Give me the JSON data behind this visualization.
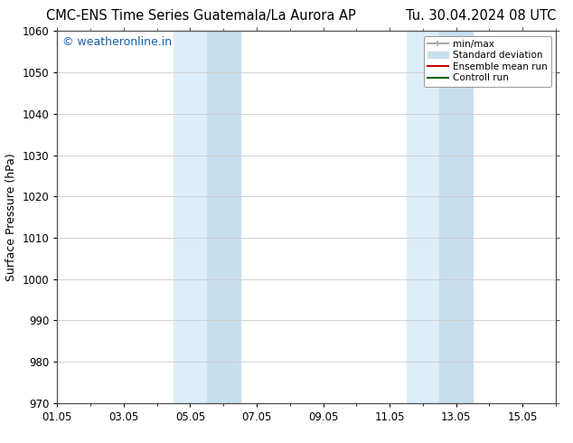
{
  "title_left": "CMC-ENS Time Series Guatemala/La Aurora AP",
  "title_right": "Tu. 30.04.2024 08 UTC",
  "ylabel": "Surface Pressure (hPa)",
  "ylim": [
    970,
    1060
  ],
  "yticks": [
    970,
    980,
    990,
    1000,
    1010,
    1020,
    1030,
    1040,
    1050,
    1060
  ],
  "xlim": [
    0,
    15
  ],
  "xtick_labels": [
    "01.05",
    "03.05",
    "05.05",
    "07.05",
    "09.05",
    "11.05",
    "13.05",
    "15.05"
  ],
  "xtick_positions": [
    0,
    2,
    4,
    6,
    8,
    10,
    12,
    14
  ],
  "shaded_bands": [
    {
      "x_start": 3.5,
      "x_end": 4.5,
      "color": "#ddeef8",
      "alpha": 1.0
    },
    {
      "x_start": 4.5,
      "x_end": 5.5,
      "color": "#c8dff0",
      "alpha": 1.0
    },
    {
      "x_start": 10.5,
      "x_end": 11.5,
      "color": "#ddeef8",
      "alpha": 1.0
    },
    {
      "x_start": 11.5,
      "x_end": 12.5,
      "color": "#c8dff0",
      "alpha": 1.0
    }
  ],
  "watermark": "© weatheronline.in",
  "watermark_color": "#1a5faa",
  "legend_items": [
    {
      "label": "min/max",
      "color": "#aaaaaa",
      "lw": 1.5
    },
    {
      "label": "Standard deviation",
      "color": "#c8dff0",
      "lw": 8
    },
    {
      "label": "Ensemble mean run",
      "color": "#cc0000",
      "lw": 1.5
    },
    {
      "label": "Controll run",
      "color": "#006600",
      "lw": 1.5
    }
  ],
  "bg_color": "#ffffff",
  "grid_color": "#cccccc",
  "title_fontsize": 10.5,
  "tick_fontsize": 8.5,
  "label_fontsize": 9,
  "watermark_fontsize": 9
}
